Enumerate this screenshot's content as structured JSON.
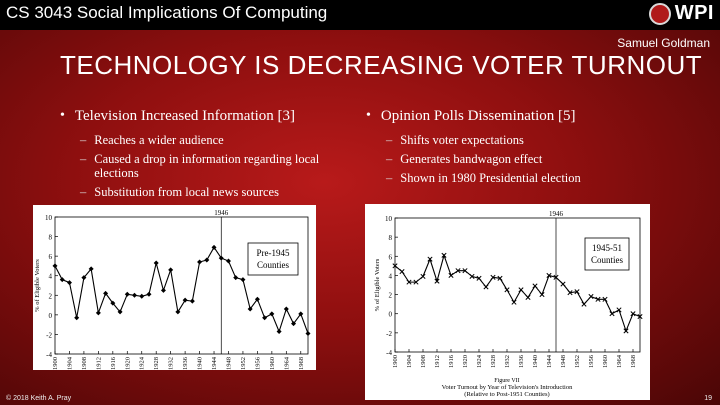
{
  "header": {
    "course": "CS 3043 Social Implications Of Computing",
    "logo_text": "WPI",
    "logo_icon": "wpi-seal-icon"
  },
  "author": "Samuel Goldman",
  "title": "TECHNOLOGY IS DECREASING VOTER TURNOUT",
  "left_column": {
    "heading": "Television Increased Information [3]",
    "items": [
      "Reaches a wider audience",
      "Caused a drop in information regarding local elections",
      "Substitution from local news sources"
    ]
  },
  "right_column": {
    "heading": "Opinion Polls Dissemination [5]",
    "items": [
      "Shifts voter expectations",
      "Generates bandwagon effect",
      "Shown in 1980 Presidential election"
    ]
  },
  "footer": {
    "copyright": "© 2018 Keith A. Pray",
    "page": "19"
  },
  "chart_data": [
    {
      "type": "line",
      "title": "",
      "xlabel": "",
      "ylabel": "% of Eligible Voters",
      "ylim": [
        -4,
        10
      ],
      "yticks": [
        "-4",
        "-2",
        "0",
        "2",
        "4",
        "6",
        "8",
        "10"
      ],
      "xlim": [
        1900,
        1970
      ],
      "xticks": [
        "1900",
        "1904",
        "1908",
        "1912",
        "1916",
        "1920",
        "1924",
        "1928",
        "1932",
        "1936",
        "1940",
        "1944",
        "1948",
        "1952",
        "1956",
        "1960",
        "1964",
        "1968"
      ],
      "vline_label": "1946",
      "vline_x": 1946,
      "legend": "Pre-1945\nCounties",
      "legend_lines": [
        "Pre-1945",
        "Counties"
      ],
      "marker": "diamond",
      "x": [
        1900,
        1902,
        1904,
        1906,
        1908,
        1910,
        1912,
        1914,
        1916,
        1918,
        1920,
        1922,
        1924,
        1926,
        1928,
        1930,
        1932,
        1934,
        1936,
        1938,
        1940,
        1942,
        1944,
        1946,
        1948,
        1950,
        1952,
        1954,
        1956,
        1958,
        1960,
        1962,
        1964,
        1966,
        1968,
        1970
      ],
      "values": [
        5.0,
        3.6,
        3.3,
        -0.3,
        3.8,
        4.7,
        0.2,
        2.2,
        1.2,
        0.3,
        2.1,
        2.0,
        1.9,
        2.1,
        5.3,
        2.5,
        4.6,
        0.3,
        1.5,
        1.4,
        5.4,
        5.6,
        6.9,
        5.8,
        5.5,
        3.8,
        3.6,
        0.6,
        1.6,
        -0.3,
        0.1,
        -1.7,
        0.6,
        -0.9,
        0.1,
        -1.9
      ]
    },
    {
      "type": "line",
      "title": "",
      "ylabel": "% of Eligible Voters",
      "ylim": [
        -4,
        10
      ],
      "yticks": [
        "-4",
        "-2",
        "0",
        "2",
        "4",
        "6",
        "8",
        "10"
      ],
      "xlim": [
        1900,
        1970
      ],
      "xticks": [
        "1900",
        "1904",
        "1908",
        "1912",
        "1916",
        "1920",
        "1924",
        "1928",
        "1932",
        "1936",
        "1940",
        "1944",
        "1948",
        "1952",
        "1956",
        "1960",
        "1964",
        "1968"
      ],
      "vline_label": "1946",
      "vline_x": 1946,
      "legend": "1945-51\nCounties",
      "legend_lines": [
        "1945-51",
        "Counties"
      ],
      "marker": "x",
      "caption_figure": "Figure VII",
      "caption_text": "Voter Turnout by Year of Television's Introduction",
      "caption_sub": "(Relative to Post-1951 Counties)",
      "x": [
        1900,
        1902,
        1904,
        1906,
        1908,
        1910,
        1912,
        1914,
        1916,
        1918,
        1920,
        1922,
        1924,
        1926,
        1928,
        1930,
        1932,
        1934,
        1936,
        1938,
        1940,
        1942,
        1944,
        1946,
        1948,
        1950,
        1952,
        1954,
        1956,
        1958,
        1960,
        1962,
        1964,
        1966,
        1968,
        1970
      ],
      "values": [
        5.0,
        4.4,
        3.3,
        3.3,
        3.9,
        5.7,
        3.4,
        6.1,
        4.0,
        4.5,
        4.5,
        3.9,
        3.7,
        2.8,
        3.8,
        3.7,
        2.5,
        1.2,
        2.5,
        1.7,
        2.9,
        2.0,
        4.0,
        3.8,
        3.1,
        2.2,
        2.3,
        1.0,
        1.8,
        1.5,
        1.5,
        0.0,
        0.4,
        -1.8,
        0.0,
        -0.3
      ]
    }
  ]
}
